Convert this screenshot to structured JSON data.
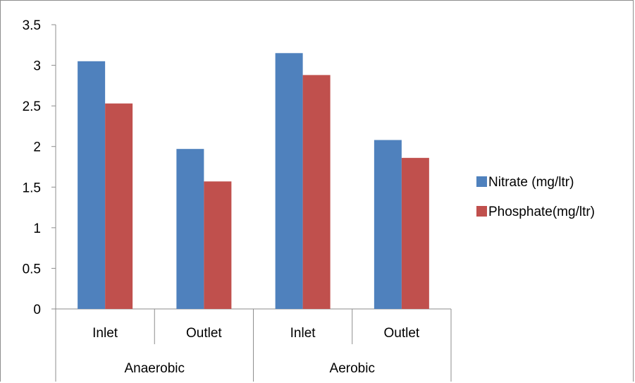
{
  "chart_data": {
    "type": "bar",
    "groups": [
      {
        "label": "Anaerobic",
        "categories": [
          "Inlet",
          "Outlet"
        ]
      },
      {
        "label": "Aerobic",
        "categories": [
          "Inlet",
          "Outlet"
        ]
      }
    ],
    "series": [
      {
        "name": "Nitrate (mg/ltr)",
        "color": "#4f81bd",
        "values": [
          3.05,
          1.97,
          3.15,
          2.08
        ]
      },
      {
        "name": "Phosphate(mg/ltr)",
        "color": "#c0504d",
        "values": [
          2.53,
          1.57,
          2.88,
          1.86
        ]
      }
    ],
    "yticks": [
      "0",
      "0.5",
      "1",
      "1.5",
      "2",
      "2.5",
      "3",
      "3.5"
    ],
    "ylim": [
      0,
      3.5
    ],
    "legend": "right",
    "grid": false
  }
}
